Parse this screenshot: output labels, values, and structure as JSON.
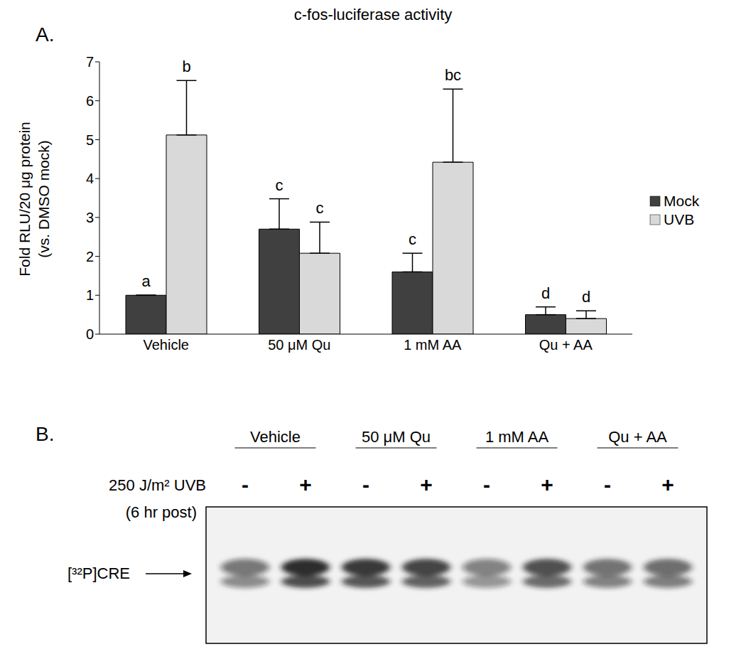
{
  "chart_data": {
    "type": "bar",
    "panel_label": "A.",
    "title": "c-fos-luciferase activity",
    "y_label": [
      "Fold RLU/20 μg protein",
      "(vs. DMSO mock)"
    ],
    "categories": [
      "Vehicle",
      "50 μM Qu",
      "1 mM AA",
      "Qu + AA"
    ],
    "series": [
      {
        "name": "Mock",
        "color": "#404040",
        "values": [
          1,
          2.7,
          1.6,
          0.5
        ],
        "errors": [
          0,
          0.78,
          0.48,
          0.2
        ],
        "letters": [
          "a",
          "c",
          "c",
          "d"
        ]
      },
      {
        "name": "UVB",
        "color": "#d9d9d9",
        "values": [
          5.12,
          2.08,
          4.42,
          0.4
        ],
        "errors": [
          1.4,
          0.8,
          1.88,
          0.2
        ],
        "letters": [
          "b",
          "c",
          "bc",
          "d"
        ]
      }
    ],
    "ylim": [
      0,
      7
    ],
    "yticks": [
      0,
      1,
      2,
      3,
      4,
      5,
      6,
      7
    ],
    "grid": false,
    "legend": "right"
  },
  "gel": {
    "panel_label": "B.",
    "groups": [
      "Vehicle",
      "50 μM Qu",
      "1 mM AA",
      "Qu + AA"
    ],
    "treatment_label": [
      "250 J/m² UVB",
      "(6 hr post)"
    ],
    "uvb_marks": [
      "-",
      "+",
      "-",
      "+",
      "-",
      "+",
      "-",
      "+"
    ],
    "band_label": "[³²P]CRE",
    "band_intensity": [
      0.55,
      0.9,
      0.85,
      0.8,
      0.5,
      0.75,
      0.6,
      0.62
    ]
  }
}
